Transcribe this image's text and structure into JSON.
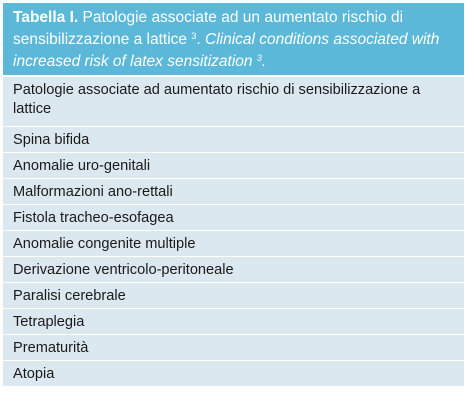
{
  "caption": {
    "label": "Tabella I.",
    "italian_text": "Patologie associate ad un aumentato rischio di sensibilizzazione a lattice",
    "italian_ref": "3",
    "separator": ".",
    "english_text": "Clinical conditions associated with increased risk of latex sensitization",
    "english_ref": "3",
    "end": "."
  },
  "table": {
    "header": "Patologie associate ad aumentato rischio di sensibilizzazione a lattice",
    "rows": [
      "Spina bifida",
      "Anomalie uro-genitali",
      "Malformazioni ano-rettali",
      "Fistola tracheo-esofagea",
      "Anomalie congenite multiple",
      "Derivazione ventricolo-peritoneale",
      "Paralisi cerebrale",
      "Tetraplegia",
      "Prematurità",
      "Atopia"
    ]
  },
  "colors": {
    "caption_background": "#5bb8d9",
    "row_background": "#dce8ef",
    "text": "#1a1a1a"
  }
}
